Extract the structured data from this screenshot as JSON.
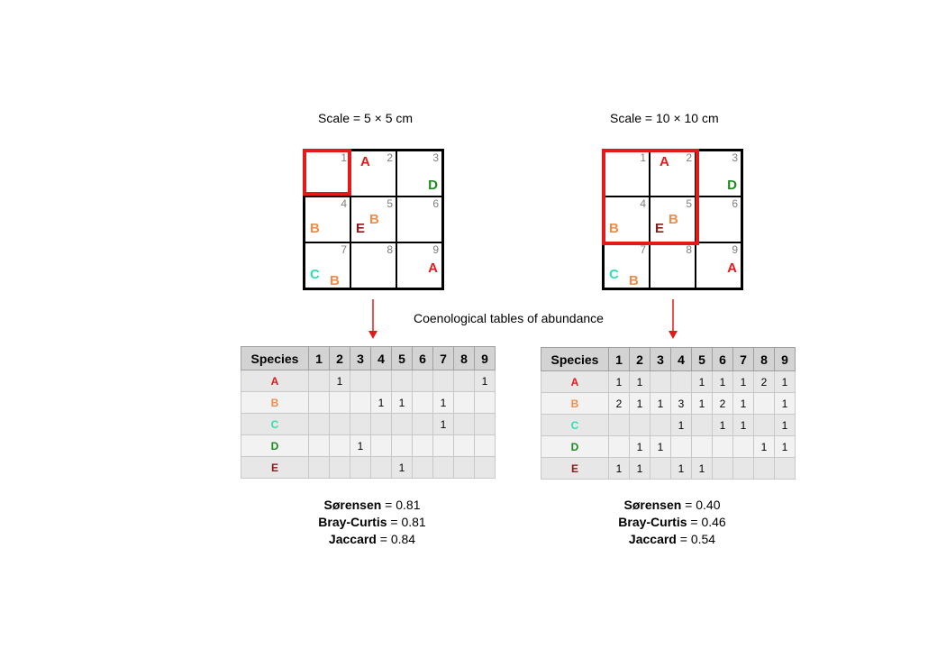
{
  "left": {
    "scale_label": "Scale = 5 × 5 cm",
    "cells": [
      {
        "num": "1",
        "species": []
      },
      {
        "num": "2",
        "species": [
          {
            "letter": "A",
            "pos": "tl"
          }
        ]
      },
      {
        "num": "3",
        "species": [
          {
            "letter": "D",
            "pos": "br"
          }
        ]
      },
      {
        "num": "4",
        "species": [
          {
            "letter": "B",
            "pos": "bl"
          }
        ]
      },
      {
        "num": "5",
        "species": [
          {
            "letter": "B",
            "pos": "mid"
          },
          {
            "letter": "E",
            "pos": "bl"
          }
        ]
      },
      {
        "num": "6",
        "species": []
      },
      {
        "num": "7",
        "species": [
          {
            "letter": "C",
            "pos": "bl"
          },
          {
            "letter": "B",
            "pos": "bm"
          }
        ]
      },
      {
        "num": "8",
        "species": []
      },
      {
        "num": "9",
        "species": [
          {
            "letter": "A",
            "pos": "mr"
          }
        ]
      }
    ],
    "table": {
      "header": [
        "Species",
        "1",
        "2",
        "3",
        "4",
        "5",
        "6",
        "7",
        "8",
        "9"
      ],
      "rows": [
        {
          "species": "A",
          "values": [
            "",
            "1",
            "",
            "",
            "",
            "",
            "",
            "",
            "1"
          ]
        },
        {
          "species": "B",
          "values": [
            "",
            "",
            "",
            "1",
            "1",
            "",
            "1",
            "",
            ""
          ]
        },
        {
          "species": "C",
          "values": [
            "",
            "",
            "",
            "",
            "",
            "",
            "1",
            "",
            ""
          ]
        },
        {
          "species": "D",
          "values": [
            "",
            "",
            "1",
            "",
            "",
            "",
            "",
            "",
            ""
          ]
        },
        {
          "species": "E",
          "values": [
            "",
            "",
            "",
            "",
            "1",
            "",
            "",
            "",
            ""
          ]
        }
      ]
    },
    "indices": [
      {
        "name": "Sørensen",
        "value": " = 0.81"
      },
      {
        "name": "Bray-Curtis",
        "value": " = 0.81"
      },
      {
        "name": "Jaccard",
        "value": " = 0.84"
      }
    ]
  },
  "right": {
    "scale_label": "Scale = 10 × 10 cm",
    "cells": [
      {
        "num": "1",
        "species": []
      },
      {
        "num": "2",
        "species": [
          {
            "letter": "A",
            "pos": "tl"
          }
        ]
      },
      {
        "num": "3",
        "species": [
          {
            "letter": "D",
            "pos": "br"
          }
        ]
      },
      {
        "num": "4",
        "species": [
          {
            "letter": "B",
            "pos": "bl"
          }
        ]
      },
      {
        "num": "5",
        "species": [
          {
            "letter": "B",
            "pos": "mid"
          },
          {
            "letter": "E",
            "pos": "bl"
          }
        ]
      },
      {
        "num": "6",
        "species": []
      },
      {
        "num": "7",
        "species": [
          {
            "letter": "C",
            "pos": "bl"
          },
          {
            "letter": "B",
            "pos": "bm"
          }
        ]
      },
      {
        "num": "8",
        "species": []
      },
      {
        "num": "9",
        "species": [
          {
            "letter": "A",
            "pos": "mr"
          }
        ]
      }
    ],
    "table": {
      "header": [
        "Species",
        "1",
        "2",
        "3",
        "4",
        "5",
        "6",
        "7",
        "8",
        "9"
      ],
      "rows": [
        {
          "species": "A",
          "values": [
            "1",
            "1",
            "",
            "",
            "1",
            "1",
            "1",
            "2",
            "1"
          ]
        },
        {
          "species": "B",
          "values": [
            "2",
            "1",
            "1",
            "3",
            "1",
            "2",
            "1",
            "",
            "1"
          ]
        },
        {
          "species": "C",
          "values": [
            "",
            "",
            "",
            "1",
            "",
            "1",
            "1",
            "",
            "1"
          ]
        },
        {
          "species": "D",
          "values": [
            "",
            "1",
            "1",
            "",
            "",
            "",
            "",
            "1",
            "1"
          ]
        },
        {
          "species": "E",
          "values": [
            "1",
            "1",
            "",
            "1",
            "1",
            "",
            "",
            "",
            ""
          ]
        }
      ]
    },
    "indices": [
      {
        "name": "Sørensen",
        "value": " = 0.40"
      },
      {
        "name": "Bray-Curtis",
        "value": " = 0.46"
      },
      {
        "name": "Jaccard",
        "value": " = 0.54"
      }
    ]
  },
  "middle_label": "Coenological tables of abundance",
  "species_colors": {
    "A": "#e21a1a",
    "B": "#f08c4a",
    "C": "#2ee0b0",
    "D": "#1e8a1e",
    "E": "#8b1a1a"
  },
  "highlight_color": "#e21a1a"
}
